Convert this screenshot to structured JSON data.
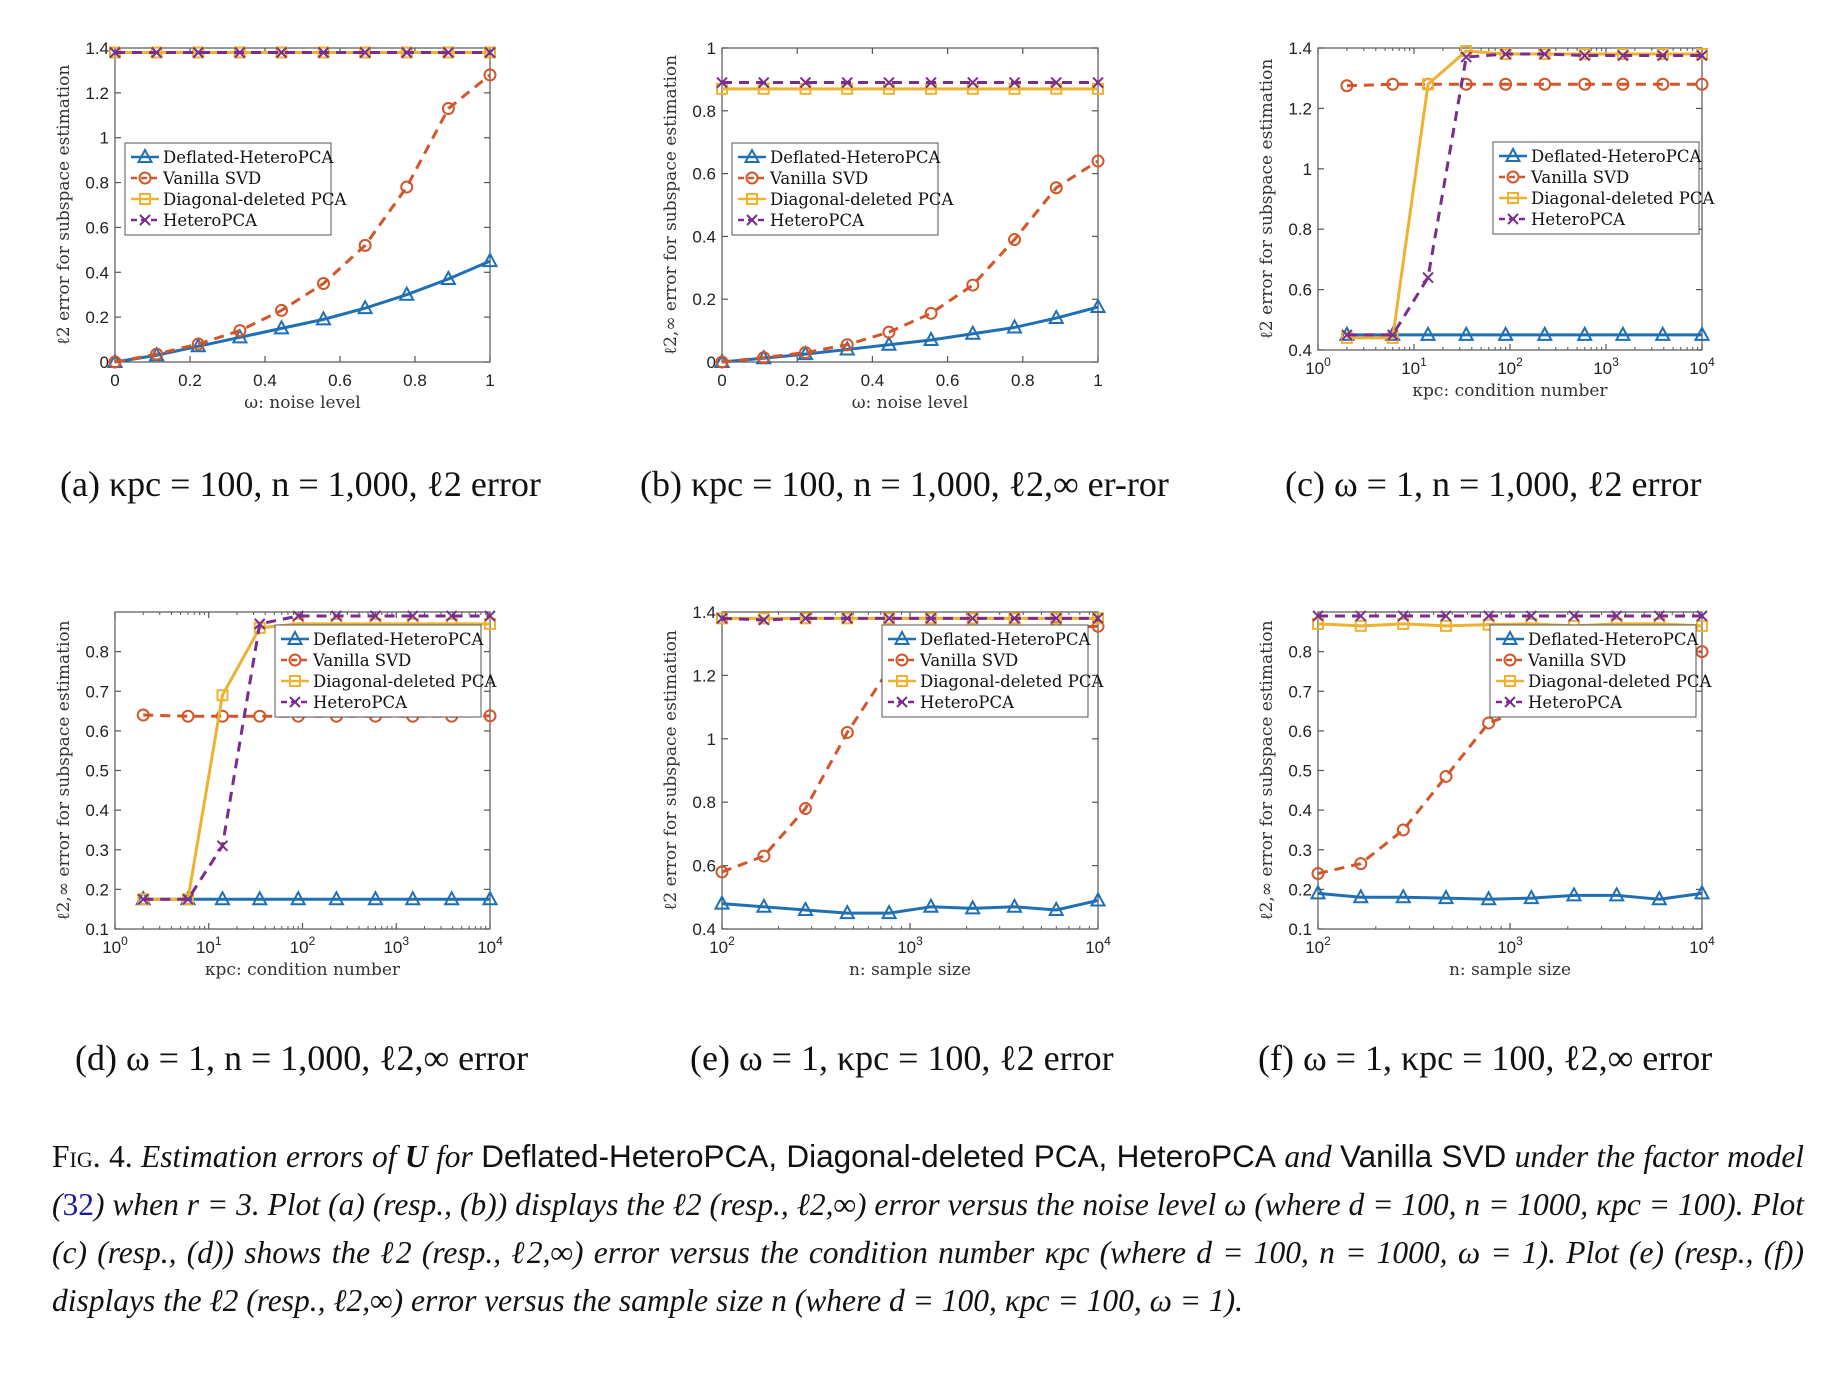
{
  "legend_entries": [
    "Deflated-HeteroPCA",
    "Vanilla SVD",
    "Diagonal-deleted PCA",
    "HeteroPCA"
  ],
  "colors": {
    "deflated": "#1f6fb5",
    "vanilla": "#d2562a",
    "diagonal": "#edb22f",
    "hetero": "#7b2d8e",
    "ref_link": "#1a1aa6"
  },
  "subcaptions": {
    "a": "(a) κpc = 100, n = 1,000, ℓ2 error",
    "b": "(b) κpc = 100, n = 1,000, ℓ2,∞ er-ror",
    "c": "(c) ω = 1, n = 1,000, ℓ2 error",
    "d": "(d) ω = 1, n = 1,000, ℓ2,∞ error",
    "e": "(e) ω = 1, κpc = 100, ℓ2 error",
    "f": "(f) ω = 1, κpc = 100, ℓ2,∞ error"
  },
  "caption": {
    "lead": "Fig. 4.",
    "p1": "Estimation errors of",
    "sym_U": "U",
    "p2": "for",
    "m1": "Deflated-HeteroPCA, Diagonal-deleted PCA, HeteroPCA",
    "p3": "and",
    "m2": "Vanilla SVD",
    "p4": "under the factor model (",
    "ref": "32",
    "p5": ") when r = 3. Plot (a) (resp., (b)) displays the ℓ2 (resp., ℓ2,∞) error versus the noise level ω (where d = 100, n = 1000, κpc = 100). Plot (c) (resp., (d)) shows the ℓ2 (resp., ℓ2,∞) error versus the condition number κpc (where d = 100, n = 1000, ω = 1). Plot (e) (resp., (f)) displays the ℓ2 (resp., ℓ2,∞) error versus the sample size n (where d = 100, κpc = 100, ω = 1)."
  },
  "chart_data": [
    {
      "id": "a",
      "type": "line",
      "xscale": "linear",
      "xlim": [
        0,
        1
      ],
      "ylim": [
        0,
        1.4
      ],
      "xticks": [
        0,
        0.2,
        0.4,
        0.6,
        0.8,
        1
      ],
      "xtick_labels": [
        "0",
        "0.2",
        "0.4",
        "0.6",
        "0.8",
        "1"
      ],
      "yticks": [
        0,
        0.2,
        0.4,
        0.6,
        0.8,
        1,
        1.2,
        1.4
      ],
      "ytick_labels": [
        "0",
        "0.2",
        "0.4",
        "0.6",
        "0.8",
        "1",
        "1.2",
        "1.4"
      ],
      "xlabel": "ω: noise level",
      "ylabel": "ℓ2 error for subspace estimation",
      "legend_position": "middle-left",
      "x": [
        0,
        0.111,
        0.222,
        0.333,
        0.444,
        0.556,
        0.667,
        0.778,
        0.889,
        1
      ],
      "series": [
        {
          "name": "Deflated-HeteroPCA",
          "values": [
            0,
            0.03,
            0.07,
            0.11,
            0.15,
            0.19,
            0.24,
            0.3,
            0.37,
            0.45
          ]
        },
        {
          "name": "Vanilla SVD",
          "values": [
            0,
            0.035,
            0.08,
            0.14,
            0.23,
            0.35,
            0.52,
            0.78,
            1.13,
            1.28
          ]
        },
        {
          "name": "Diagonal-deleted PCA",
          "values": [
            1.38,
            1.38,
            1.38,
            1.38,
            1.38,
            1.38,
            1.38,
            1.38,
            1.38,
            1.38
          ]
        },
        {
          "name": "HeteroPCA",
          "values": [
            1.38,
            1.38,
            1.38,
            1.38,
            1.38,
            1.38,
            1.38,
            1.38,
            1.38,
            1.38
          ]
        }
      ]
    },
    {
      "id": "b",
      "type": "line",
      "xscale": "linear",
      "xlim": [
        0,
        1
      ],
      "ylim": [
        0,
        1
      ],
      "xticks": [
        0,
        0.2,
        0.4,
        0.6,
        0.8,
        1
      ],
      "xtick_labels": [
        "0",
        "0.2",
        "0.4",
        "0.6",
        "0.8",
        "1"
      ],
      "yticks": [
        0,
        0.2,
        0.4,
        0.6,
        0.8,
        1
      ],
      "ytick_labels": [
        "0",
        "0.2",
        "0.4",
        "0.6",
        "0.8",
        "1"
      ],
      "xlabel": "ω: noise level",
      "ylabel": "ℓ2,∞ error for subspace estimation",
      "legend_position": "middle-left",
      "x": [
        0,
        0.111,
        0.222,
        0.333,
        0.444,
        0.556,
        0.667,
        0.778,
        0.889,
        1
      ],
      "series": [
        {
          "name": "Deflated-HeteroPCA",
          "values": [
            0,
            0.012,
            0.025,
            0.04,
            0.055,
            0.07,
            0.09,
            0.11,
            0.14,
            0.175
          ]
        },
        {
          "name": "Vanilla SVD",
          "values": [
            0,
            0.014,
            0.03,
            0.055,
            0.095,
            0.155,
            0.245,
            0.39,
            0.555,
            0.64
          ]
        },
        {
          "name": "Diagonal-deleted PCA",
          "values": [
            0.87,
            0.87,
            0.87,
            0.87,
            0.87,
            0.87,
            0.87,
            0.87,
            0.87,
            0.87
          ]
        },
        {
          "name": "HeteroPCA",
          "values": [
            0.89,
            0.89,
            0.89,
            0.89,
            0.89,
            0.89,
            0.89,
            0.89,
            0.89,
            0.89
          ]
        }
      ]
    },
    {
      "id": "c",
      "type": "line",
      "xscale": "log",
      "xlim": [
        1,
        10000
      ],
      "ylim": [
        0.4,
        1.4
      ],
      "xticks": [
        1,
        10,
        100,
        1000,
        10000
      ],
      "xtick_labels": [
        "10^0",
        "10^1",
        "10^2",
        "10^3",
        "10^4"
      ],
      "yticks": [
        0.4,
        0.6,
        0.8,
        1,
        1.2,
        1.4
      ],
      "ytick_labels": [
        "0.4",
        "0.6",
        "0.8",
        "1",
        "1.2",
        "1.4"
      ],
      "xlabel": "κpc: condition number",
      "ylabel": "ℓ2 error for subspace estimation",
      "legend_position": "middle-right",
      "x": [
        2,
        6,
        14,
        35,
        90,
        230,
        600,
        1500,
        3900,
        10000
      ],
      "series": [
        {
          "name": "Deflated-HeteroPCA",
          "values": [
            0.45,
            0.45,
            0.45,
            0.45,
            0.45,
            0.45,
            0.45,
            0.45,
            0.45,
            0.45
          ]
        },
        {
          "name": "Vanilla SVD",
          "values": [
            1.275,
            1.28,
            1.28,
            1.28,
            1.28,
            1.28,
            1.28,
            1.28,
            1.28,
            1.28
          ]
        },
        {
          "name": "Diagonal-deleted PCA",
          "values": [
            0.44,
            0.44,
            1.28,
            1.39,
            1.38,
            1.38,
            1.38,
            1.38,
            1.38,
            1.38
          ]
        },
        {
          "name": "HeteroPCA",
          "values": [
            0.45,
            0.45,
            0.64,
            1.37,
            1.38,
            1.38,
            1.375,
            1.375,
            1.375,
            1.375
          ]
        }
      ]
    },
    {
      "id": "d",
      "type": "line",
      "xscale": "log",
      "xlim": [
        1,
        10000
      ],
      "ylim": [
        0.1,
        0.9
      ],
      "xticks": [
        1,
        10,
        100,
        1000,
        10000
      ],
      "xtick_labels": [
        "10^0",
        "10^1",
        "10^2",
        "10^3",
        "10^4"
      ],
      "yticks": [
        0.1,
        0.2,
        0.3,
        0.4,
        0.5,
        0.6,
        0.7,
        0.8
      ],
      "ytick_labels": [
        "0.1",
        "0.2",
        "0.3",
        "0.4",
        "0.5",
        "0.6",
        "0.7",
        "0.8"
      ],
      "xlabel": "κpc: condition number",
      "ylabel": "ℓ2,∞ error for subspace estimation",
      "legend_position": "middle-right",
      "x": [
        2,
        6,
        14,
        35,
        90,
        230,
        600,
        1500,
        3900,
        10000
      ],
      "series": [
        {
          "name": "Deflated-HeteroPCA",
          "values": [
            0.175,
            0.175,
            0.175,
            0.175,
            0.175,
            0.175,
            0.175,
            0.175,
            0.175,
            0.175
          ]
        },
        {
          "name": "Vanilla SVD",
          "values": [
            0.64,
            0.637,
            0.637,
            0.637,
            0.637,
            0.637,
            0.637,
            0.637,
            0.637,
            0.638
          ]
        },
        {
          "name": "Diagonal-deleted PCA",
          "values": [
            0.175,
            0.175,
            0.69,
            0.86,
            0.87,
            0.87,
            0.87,
            0.87,
            0.87,
            0.87
          ]
        },
        {
          "name": "HeteroPCA",
          "values": [
            0.175,
            0.175,
            0.31,
            0.87,
            0.89,
            0.89,
            0.89,
            0.89,
            0.89,
            0.89
          ]
        }
      ]
    },
    {
      "id": "e",
      "type": "line",
      "xscale": "log",
      "xlim": [
        100,
        10000
      ],
      "ylim": [
        0.4,
        1.4
      ],
      "xticks": [
        100,
        1000,
        10000
      ],
      "xtick_labels": [
        "10^2",
        "10^3",
        "10^4"
      ],
      "yticks": [
        0.4,
        0.6,
        0.8,
        1,
        1.2,
        1.4
      ],
      "ytick_labels": [
        "0.4",
        "0.6",
        "0.8",
        "1",
        "1.2",
        "1.4"
      ],
      "xlabel": "n: sample size",
      "ylabel": "ℓ2 error for subspace estimation",
      "legend_position": "middle-right",
      "x": [
        100,
        167,
        278,
        464,
        774,
        1292,
        2154,
        3594,
        5995,
        10000
      ],
      "series": [
        {
          "name": "Deflated-HeteroPCA",
          "values": [
            0.48,
            0.47,
            0.46,
            0.45,
            0.45,
            0.47,
            0.465,
            0.47,
            0.46,
            0.49
          ]
        },
        {
          "name": "Vanilla SVD",
          "values": [
            0.58,
            0.63,
            0.78,
            1.02,
            1.22,
            1.28,
            1.32,
            1.335,
            1.35,
            1.355
          ]
        },
        {
          "name": "Diagonal-deleted PCA",
          "values": [
            1.38,
            1.38,
            1.38,
            1.38,
            1.38,
            1.38,
            1.38,
            1.38,
            1.38,
            1.38
          ]
        },
        {
          "name": "HeteroPCA",
          "values": [
            1.38,
            1.375,
            1.38,
            1.38,
            1.38,
            1.38,
            1.38,
            1.38,
            1.38,
            1.38
          ]
        }
      ]
    },
    {
      "id": "f",
      "type": "line",
      "xscale": "log",
      "xlim": [
        100,
        10000
      ],
      "ylim": [
        0.1,
        0.9
      ],
      "xticks": [
        100,
        1000,
        10000
      ],
      "xtick_labels": [
        "10^2",
        "10^3",
        "10^4"
      ],
      "yticks": [
        0.1,
        0.2,
        0.3,
        0.4,
        0.5,
        0.6,
        0.7,
        0.8
      ],
      "ytick_labels": [
        "0.1",
        "0.2",
        "0.3",
        "0.4",
        "0.5",
        "0.6",
        "0.7",
        "0.8"
      ],
      "xlabel": "n: sample size",
      "ylabel": "ℓ2,∞ error for subspace estimation",
      "legend_position": "middle-right",
      "x": [
        100,
        167,
        278,
        464,
        774,
        1292,
        2154,
        3594,
        5995,
        10000
      ],
      "series": [
        {
          "name": "Deflated-HeteroPCA",
          "values": [
            0.19,
            0.18,
            0.18,
            0.178,
            0.175,
            0.178,
            0.185,
            0.185,
            0.175,
            0.19
          ]
        },
        {
          "name": "Vanilla SVD",
          "values": [
            0.24,
            0.265,
            0.35,
            0.485,
            0.62,
            0.66,
            0.71,
            0.745,
            0.795,
            0.8
          ]
        },
        {
          "name": "Diagonal-deleted PCA",
          "values": [
            0.87,
            0.865,
            0.87,
            0.865,
            0.868,
            0.87,
            0.865,
            0.87,
            0.87,
            0.865
          ]
        },
        {
          "name": "HeteroPCA",
          "values": [
            0.89,
            0.89,
            0.89,
            0.89,
            0.89,
            0.89,
            0.89,
            0.89,
            0.89,
            0.89
          ]
        }
      ]
    }
  ]
}
